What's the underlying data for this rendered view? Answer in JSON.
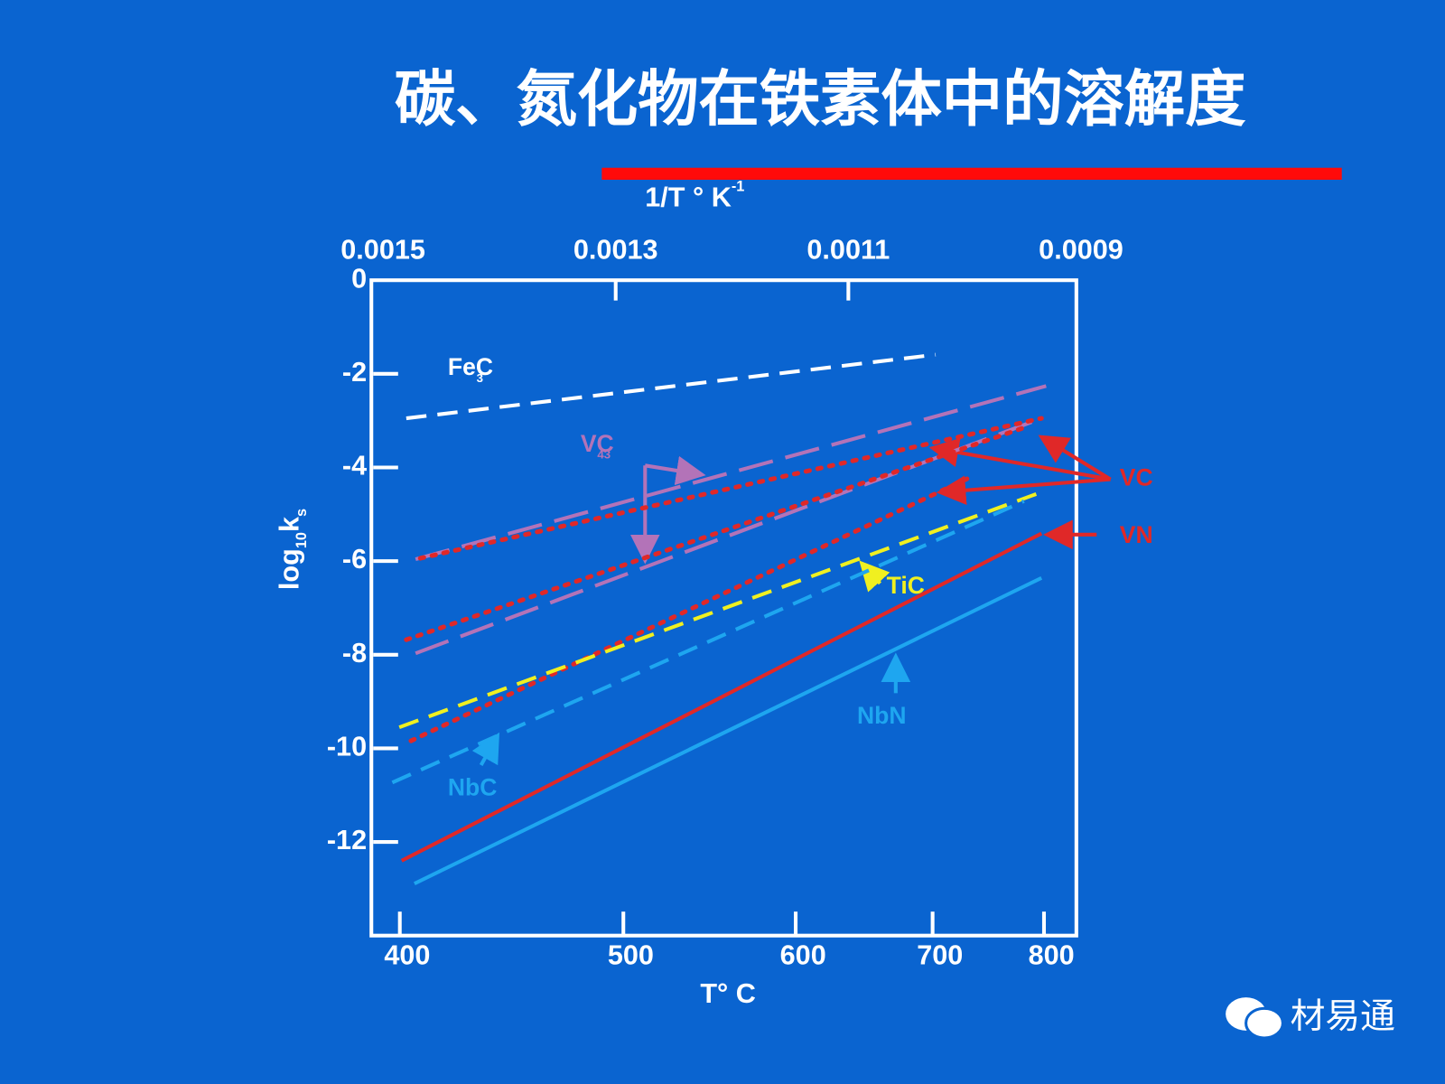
{
  "title": "碳、氮化物在铁素体中的溶解度",
  "watermark": "材易通",
  "chart_data": {
    "type": "line",
    "xlabel_top": {
      "text": "1/T ° K",
      "sup": "-1"
    },
    "xlabel_bottom": "T° C",
    "ylabel": [
      "log",
      "10",
      "k",
      "s"
    ],
    "xlim": [
      0.00151,
      0.000904
    ],
    "xticks": [
      0.0015,
      0.0013,
      0.0011,
      0.0009
    ],
    "x2ticks": [
      400,
      500,
      600,
      700,
      800
    ],
    "ylim": [
      -14,
      0
    ],
    "yticks": [
      0,
      -2,
      -4,
      -6,
      -8,
      -10,
      -12
    ],
    "series": [
      {
        "name": "Fe3C",
        "color": "#ffffff",
        "style": "dashed",
        "x": [
          0.00148,
          0.001025
        ],
        "values": [
          -2.95,
          -1.59
        ]
      },
      {
        "name": "VC43 upper",
        "color": "#b373b8",
        "style": "longdash",
        "x": [
          0.001472,
          0.00093
        ],
        "values": [
          -5.96,
          -2.26
        ]
      },
      {
        "name": "VC43 lower",
        "color": "#b373b8",
        "style": "longdash",
        "x": [
          0.001472,
          0.000934
        ],
        "values": [
          -7.97,
          -2.95
        ]
      },
      {
        "name": "VC 1",
        "color": "#e02828",
        "style": "dotted",
        "x": [
          0.001468,
          0.000934
        ],
        "values": [
          -5.94,
          -2.95
        ]
      },
      {
        "name": "VC 2",
        "color": "#e02828",
        "style": "dotted",
        "x": [
          0.00148,
          0.000949
        ],
        "values": [
          -7.68,
          -3.15
        ]
      },
      {
        "name": "VC 3",
        "color": "#e02828",
        "style": "dotted",
        "x": [
          0.001476,
          0.000997
        ],
        "values": [
          -9.84,
          -4.23
        ]
      },
      {
        "name": "TiC",
        "color": "#f0f020",
        "style": "dashed",
        "x": [
          0.001486,
          0.00093
        ],
        "values": [
          -9.55,
          -4.49
        ]
      },
      {
        "name": "NbC",
        "color": "#1ea6f0",
        "style": "dashed",
        "x": [
          0.001492,
          0.000949
        ],
        "values": [
          -10.73,
          -4.72
        ]
      },
      {
        "name": "VN",
        "color": "#e02828",
        "style": "solid",
        "x": [
          0.001484,
          0.000934
        ],
        "values": [
          -12.4,
          -5.41
        ]
      },
      {
        "name": "NbN",
        "color": "#1ea6f0",
        "style": "solid",
        "x": [
          0.001473,
          0.000934
        ],
        "values": [
          -12.89,
          -6.36
        ]
      }
    ],
    "annotations": [
      {
        "text": "FeC",
        "sub": "3",
        "color": "#ffffff"
      },
      {
        "text": "VC",
        "sub": "43",
        "color": "#b373b8"
      },
      {
        "text": "VC",
        "color": "#e02828"
      },
      {
        "text": "VN",
        "color": "#e02828"
      },
      {
        "text": "TiC",
        "color": "#f0f020"
      },
      {
        "text": "NbC",
        "color": "#1ea6f0"
      },
      {
        "text": "NbN",
        "color": "#1ea6f0"
      }
    ]
  }
}
